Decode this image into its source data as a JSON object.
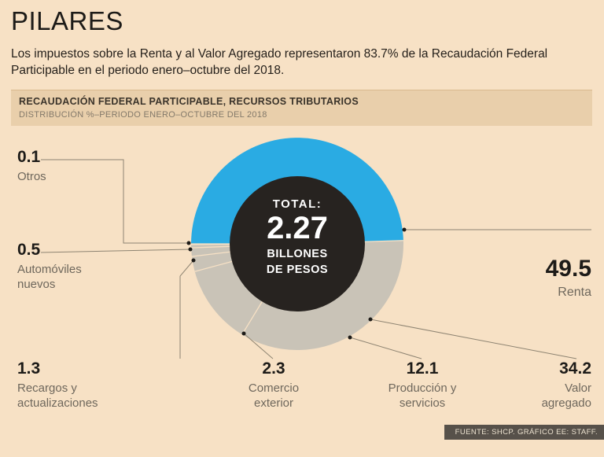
{
  "header": {
    "title": "PILARES",
    "subtitle": "Los impuestos sobre la Renta y al Valor Agregado representaron 83.7% de la Recaudación Federal Participable en el periodo enero–octubre del 2018."
  },
  "chart_data": {
    "type": "pie",
    "title": "RECAUDACIÓN FEDERAL PARTICIPABLE, RECURSOS TRIBUTARIOS",
    "subtitle": "DISTRIBUCIÓN %–PERIODO ENERO–OCTUBRE DEL 2018",
    "unit": "%",
    "center_label": {
      "prefix": "TOTAL:",
      "value": "2.27",
      "unit_line1": "BILLONES",
      "unit_line2": "DE PESOS"
    },
    "segments": [
      {
        "label": "Renta",
        "value": 49.5,
        "color": "#2aabe3"
      },
      {
        "label": "Valor agregado",
        "value": 34.2,
        "color": "#c9c3b7"
      },
      {
        "label": "Producción y servicios",
        "value": 12.1,
        "color": "#c9c3b7"
      },
      {
        "label": "Comercio exterior",
        "value": 2.3,
        "color": "#c9c3b7"
      },
      {
        "label": "Recargos y actualizaciones",
        "value": 1.3,
        "color": "#c9c3b7"
      },
      {
        "label": "Automóviles nuevos",
        "value": 0.5,
        "color": "#c9c3b7"
      },
      {
        "label": "Otros",
        "value": 0.1,
        "color": "#c9c3b7"
      }
    ],
    "start_angle_deg": 180,
    "direction": "clockwise",
    "legend_position": "callouts"
  },
  "theme": {
    "bg": "#f7e1c5",
    "bar": "#e9cfab",
    "blue": "#2aabe3",
    "gray": "#c9c3b7",
    "centerfill": "#272320",
    "line": "#8e8472",
    "ink": "#1d1b18",
    "muted": "#6e675c",
    "footbg": "#57514a",
    "foottext": "#ece2d0"
  },
  "footer": {
    "source": "FUENTE: SHCP. GRÁFICO EE: STAFF."
  }
}
